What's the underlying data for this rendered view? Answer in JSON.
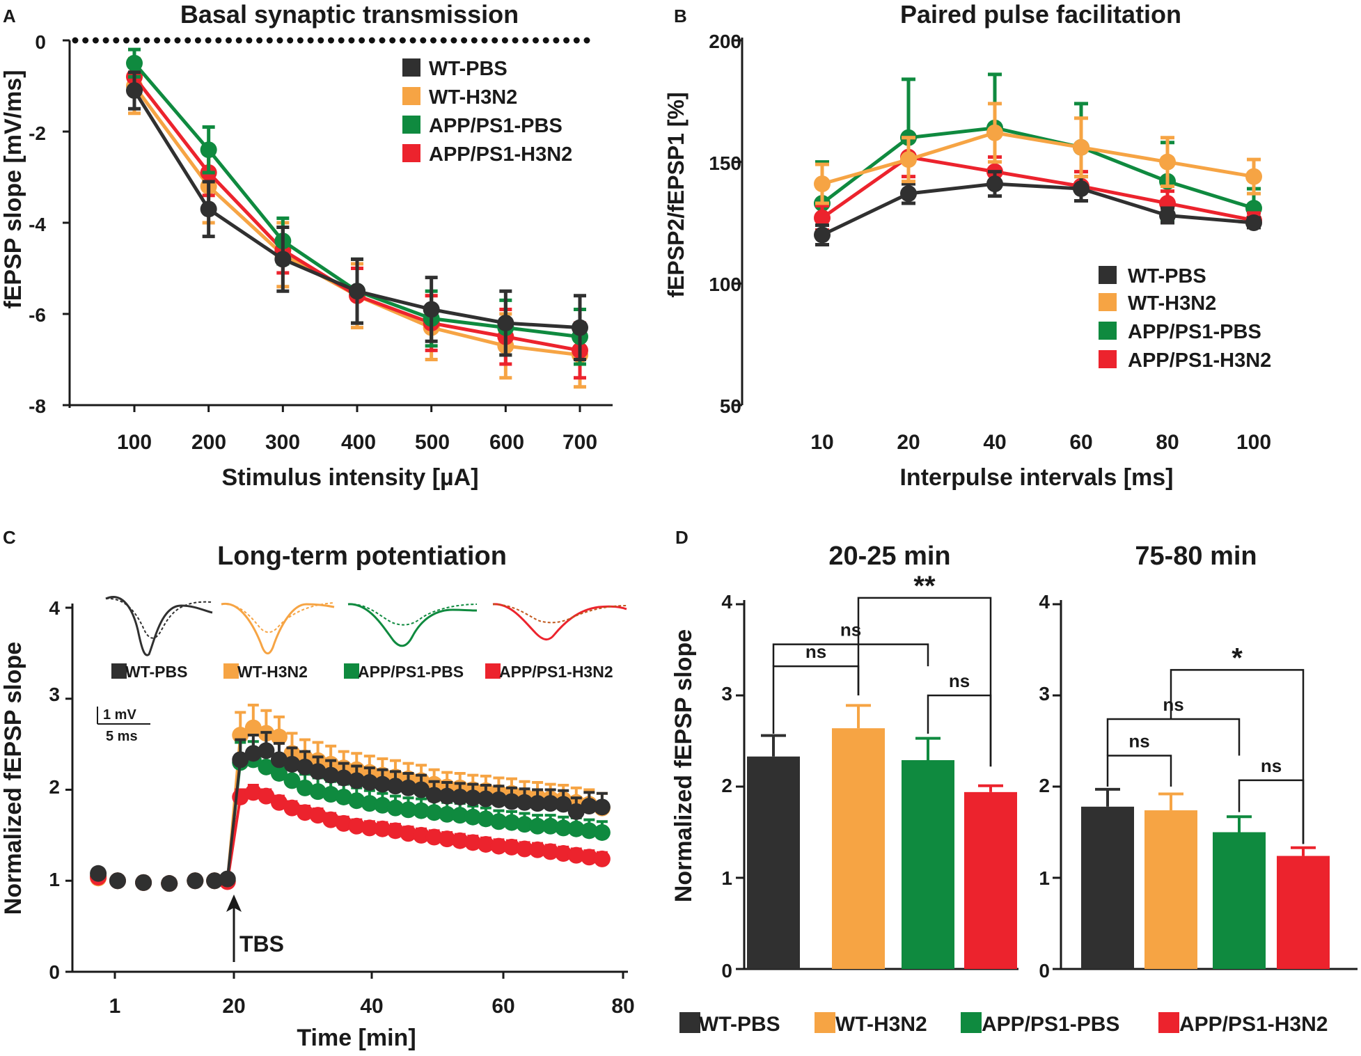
{
  "colors": {
    "wt_pbs": "#303030",
    "wt_h3n2": "#f6a444",
    "app_pbs": "#0f8a3f",
    "app_h3n2": "#ec232d",
    "axis": "#1a1a1a"
  },
  "panels": {
    "a": {
      "letter": "A"
    },
    "b": {
      "letter": "B"
    },
    "c": {
      "letter": "C",
      "tbs_label": "TBS",
      "scale_bar": {
        "mv": "1 mV",
        "ms": "5 ms"
      }
    },
    "d": {
      "letter": "D",
      "sig": {
        "double_star": "**",
        "single_star": "*",
        "ns": "ns"
      }
    }
  },
  "legend": [
    "WT-PBS",
    "WT-H3N2",
    "APP/PS1-PBS",
    "APP/PS1-H3N2"
  ],
  "chart_data": [
    {
      "id": "A",
      "type": "line",
      "title": "Basal synaptic transmission",
      "xlabel": "Stimulus intensity [µA]",
      "ylabel": "fEPSP slope [mV/ms]",
      "x": [
        100,
        200,
        300,
        400,
        500,
        600,
        700
      ],
      "xticks": [
        "100",
        "200",
        "300",
        "400",
        "500",
        "600",
        "700"
      ],
      "ylim": [
        -8,
        0
      ],
      "yticks": [
        "0",
        "-2",
        "-4",
        "-6",
        "-8"
      ],
      "legend_position": "top-right",
      "series": [
        {
          "name": "WT-PBS",
          "values": [
            -1.1,
            -3.7,
            -4.8,
            -5.5,
            -5.9,
            -6.2,
            -6.3
          ],
          "err": [
            0.4,
            0.6,
            0.7,
            0.7,
            0.7,
            0.7,
            0.7
          ]
        },
        {
          "name": "WT-H3N2",
          "values": [
            -1.0,
            -3.2,
            -4.7,
            -5.6,
            -6.3,
            -6.7,
            -6.9
          ],
          "err": [
            0.6,
            0.8,
            0.7,
            0.7,
            0.7,
            0.7,
            0.7
          ]
        },
        {
          "name": "APP/PS1-PBS",
          "values": [
            -0.5,
            -2.4,
            -4.4,
            -5.5,
            -6.1,
            -6.3,
            -6.5
          ],
          "err": [
            0.3,
            0.5,
            0.5,
            0.7,
            0.6,
            0.6,
            0.6
          ]
        },
        {
          "name": "APP/PS1-H3N2",
          "values": [
            -0.8,
            -2.9,
            -4.6,
            -5.6,
            -6.2,
            -6.5,
            -6.8
          ],
          "err": [
            0.3,
            0.5,
            0.5,
            0.6,
            0.6,
            0.6,
            0.6
          ]
        }
      ]
    },
    {
      "id": "B",
      "type": "line",
      "title": "Paired pulse facilitation",
      "xlabel": "Interpulse intervals [ms]",
      "ylabel": "fEPSP2/fEPSP1 [%]",
      "categories": [
        "10",
        "20",
        "40",
        "60",
        "80",
        "100"
      ],
      "ylim": [
        50,
        200
      ],
      "yticks": [
        "50",
        "100",
        "150",
        "200"
      ],
      "legend_position": "bottom-right",
      "series": [
        {
          "name": "WT-PBS",
          "values": [
            120,
            137,
            141,
            139,
            128,
            125
          ],
          "err": [
            4,
            4,
            5,
            5,
            3,
            2
          ]
        },
        {
          "name": "WT-H3N2",
          "values": [
            141,
            151,
            162,
            156,
            150,
            144
          ],
          "err": [
            8,
            9,
            12,
            12,
            10,
            7
          ]
        },
        {
          "name": "APP/PS1-PBS",
          "values": [
            133,
            160,
            164,
            156,
            142,
            131
          ],
          "err": [
            17,
            24,
            22,
            18,
            16,
            8
          ]
        },
        {
          "name": "APP/PS1-H3N2",
          "values": [
            127,
            152,
            146,
            140,
            133,
            126
          ],
          "err": [
            5,
            8,
            6,
            6,
            5,
            3
          ]
        }
      ]
    },
    {
      "id": "C",
      "type": "scatter",
      "title": "Long-term potentiation",
      "xlabel": "Time [min]",
      "ylabel": "Normalized fEPSP slope",
      "xlim": [
        -3,
        83
      ],
      "xticks": [
        1,
        20,
        40,
        60,
        80
      ],
      "ylim": [
        0,
        4
      ],
      "yticks": [
        "0",
        "1",
        "2",
        "3",
        "4"
      ],
      "annotation": "TBS at 20 min",
      "time": [
        1,
        4,
        8,
        12,
        16,
        19,
        21,
        23,
        25,
        27,
        29,
        31,
        33,
        35,
        37,
        39,
        41,
        43,
        45,
        47,
        49,
        51,
        53,
        55,
        57,
        59,
        61,
        63,
        65,
        67,
        69,
        71,
        73,
        75,
        77,
        79
      ],
      "series": [
        {
          "name": "WT-PBS",
          "values": [
            1.08,
            1.0,
            0.98,
            0.97,
            1.0,
            1.0,
            1.02,
            2.33,
            2.4,
            2.43,
            2.33,
            2.28,
            2.25,
            2.2,
            2.16,
            2.13,
            2.1,
            2.08,
            2.06,
            2.04,
            2.02,
            2.0,
            1.94,
            1.93,
            1.92,
            1.91,
            1.9,
            1.89,
            1.87,
            1.86,
            1.85,
            1.85,
            1.84,
            1.76,
            1.82,
            1.81
          ],
          "err": [
            0.05,
            0.05,
            0.05,
            0.05,
            0.05,
            0.05,
            0.05,
            0.22,
            0.2,
            0.2,
            0.18,
            0.18,
            0.17,
            0.16,
            0.16,
            0.16,
            0.16,
            0.16,
            0.16,
            0.16,
            0.16,
            0.16,
            0.15,
            0.15,
            0.15,
            0.15,
            0.15,
            0.15,
            0.15,
            0.15,
            0.15,
            0.15,
            0.15,
            0.15,
            0.15,
            0.15
          ]
        },
        {
          "name": "WT-H3N2",
          "values": [
            1.03,
            1.0,
            0.98,
            0.97,
            1.0,
            1.0,
            1.0,
            2.6,
            2.68,
            2.62,
            2.58,
            2.4,
            2.35,
            2.32,
            2.28,
            2.24,
            2.22,
            2.19,
            2.16,
            2.14,
            2.12,
            2.1,
            2.06,
            2.03,
            2.02,
            2.0,
            1.99,
            1.97,
            1.96,
            1.93,
            1.92,
            1.9,
            1.89,
            1.86,
            1.84,
            1.8
          ],
          "err": [
            0.05,
            0.05,
            0.05,
            0.05,
            0.05,
            0.05,
            0.05,
            0.25,
            0.25,
            0.25,
            0.22,
            0.22,
            0.2,
            0.2,
            0.2,
            0.18,
            0.18,
            0.18,
            0.18,
            0.18,
            0.17,
            0.17,
            0.16,
            0.16,
            0.16,
            0.16,
            0.16,
            0.16,
            0.16,
            0.16,
            0.16,
            0.16,
            0.16,
            0.16,
            0.16,
            0.16
          ]
        },
        {
          "name": "APP/PS1-PBS",
          "values": [
            1.05,
            1.0,
            0.98,
            0.97,
            1.0,
            1.0,
            1.0,
            2.3,
            2.33,
            2.25,
            2.18,
            2.1,
            2.02,
            1.98,
            1.95,
            1.92,
            1.88,
            1.85,
            1.83,
            1.8,
            1.78,
            1.77,
            1.75,
            1.73,
            1.72,
            1.7,
            1.68,
            1.65,
            1.64,
            1.62,
            1.6,
            1.6,
            1.58,
            1.57,
            1.55,
            1.53
          ],
          "err": [
            0.05,
            0.05,
            0.05,
            0.05,
            0.05,
            0.05,
            0.05,
            0.22,
            0.2,
            0.18,
            0.16,
            0.16,
            0.15,
            0.15,
            0.14,
            0.14,
            0.14,
            0.14,
            0.13,
            0.13,
            0.13,
            0.13,
            0.13,
            0.13,
            0.13,
            0.12,
            0.12,
            0.12,
            0.12,
            0.12,
            0.12,
            0.12,
            0.12,
            0.12,
            0.12,
            0.12
          ]
        },
        {
          "name": "APP/PS1-H3N2",
          "values": [
            1.04,
            1.0,
            0.98,
            0.97,
            1.0,
            1.0,
            0.99,
            1.92,
            1.97,
            1.93,
            1.86,
            1.8,
            1.75,
            1.72,
            1.67,
            1.63,
            1.6,
            1.58,
            1.57,
            1.55,
            1.52,
            1.5,
            1.48,
            1.46,
            1.44,
            1.42,
            1.4,
            1.38,
            1.37,
            1.35,
            1.34,
            1.32,
            1.3,
            1.28,
            1.26,
            1.24
          ],
          "err": [
            0.05,
            0.05,
            0.05,
            0.05,
            0.05,
            0.05,
            0.05,
            0.08,
            0.08,
            0.07,
            0.07,
            0.07,
            0.07,
            0.07,
            0.07,
            0.07,
            0.07,
            0.07,
            0.07,
            0.07,
            0.07,
            0.07,
            0.07,
            0.07,
            0.07,
            0.07,
            0.07,
            0.07,
            0.07,
            0.07,
            0.07,
            0.07,
            0.07,
            0.07,
            0.07,
            0.07
          ]
        }
      ]
    },
    {
      "id": "D1",
      "type": "bar",
      "title": "20-25 min",
      "ylabel": "Normalized fEPSP slope",
      "ylim": [
        0,
        4
      ],
      "yticks": [
        "0",
        "1",
        "2",
        "3",
        "4"
      ],
      "categories": [
        "WT-PBS",
        "WT-H3N2",
        "APP/PS1-PBS",
        "APP/PS1-H3N2"
      ],
      "values": [
        2.33,
        2.64,
        2.29,
        1.94
      ],
      "err": [
        0.23,
        0.25,
        0.24,
        0.07
      ],
      "comparisons": [
        {
          "pair": [
            "WT-PBS",
            "WT-H3N2"
          ],
          "label": "ns"
        },
        {
          "pair": [
            "WT-PBS",
            "APP/PS1-PBS"
          ],
          "label": "ns"
        },
        {
          "pair": [
            "APP/PS1-PBS",
            "APP/PS1-H3N2"
          ],
          "label": "ns"
        },
        {
          "pair": [
            "WT-H3N2",
            "APP/PS1-H3N2"
          ],
          "label": "**"
        }
      ]
    },
    {
      "id": "D2",
      "type": "bar",
      "title": "75-80 min",
      "ylim": [
        0,
        4
      ],
      "yticks": [
        "0",
        "1",
        "2",
        "3",
        "4"
      ],
      "categories": [
        "WT-PBS",
        "WT-H3N2",
        "APP/PS1-PBS",
        "APP/PS1-H3N2"
      ],
      "values": [
        1.78,
        1.74,
        1.5,
        1.24
      ],
      "err": [
        0.19,
        0.18,
        0.17,
        0.09
      ],
      "comparisons": [
        {
          "pair": [
            "WT-PBS",
            "WT-H3N2"
          ],
          "label": "ns"
        },
        {
          "pair": [
            "WT-PBS",
            "APP/PS1-PBS"
          ],
          "label": "ns"
        },
        {
          "pair": [
            "APP/PS1-PBS",
            "APP/PS1-H3N2"
          ],
          "label": "ns"
        },
        {
          "pair": [
            "WT-H3N2",
            "APP/PS1-H3N2"
          ],
          "label": "*"
        }
      ]
    }
  ]
}
